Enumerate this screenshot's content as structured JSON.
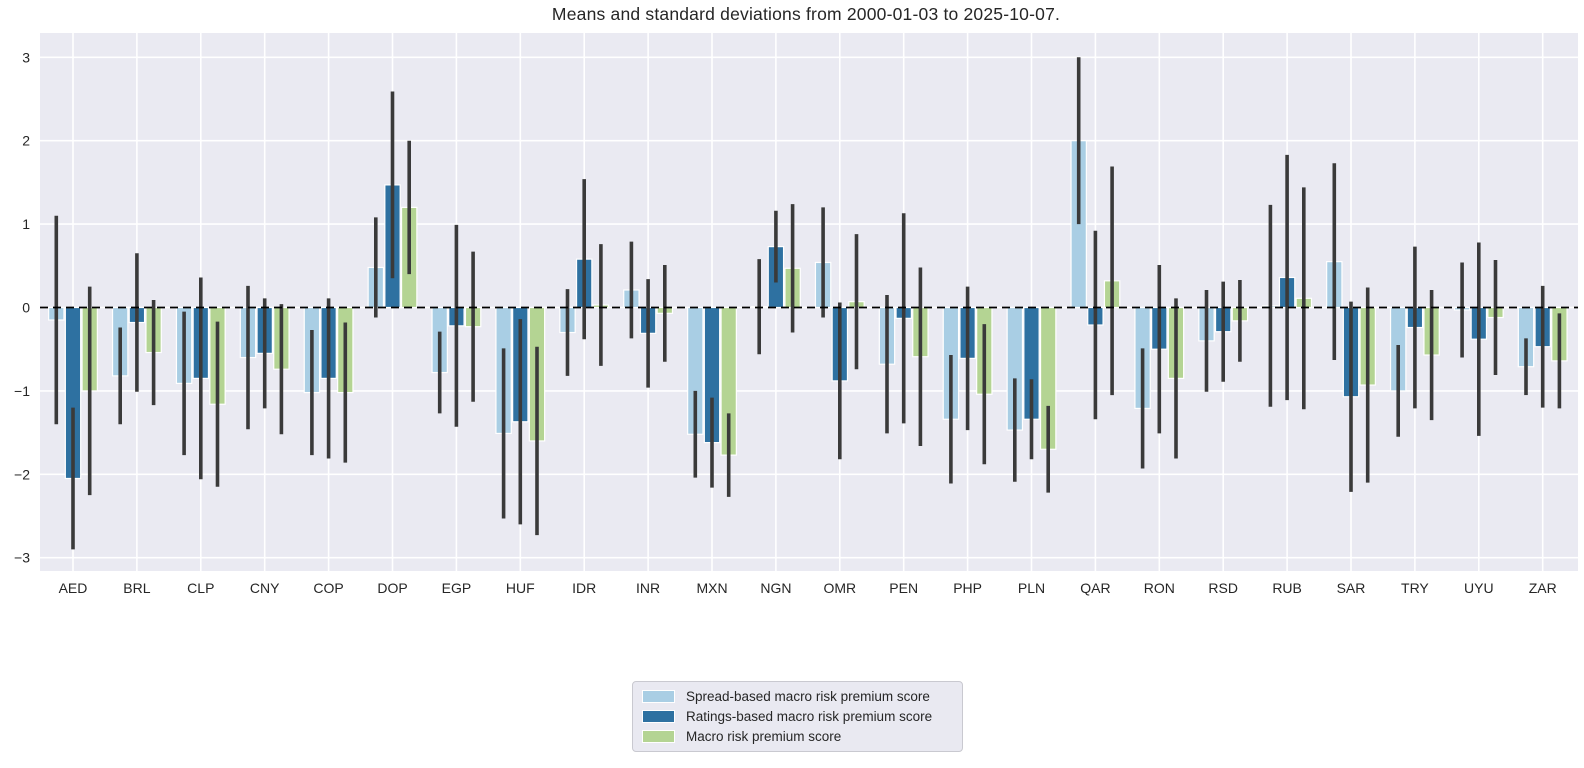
{
  "chart_data": {
    "type": "bar",
    "title": "Means and standard deviations from 2000-01-03 to 2025-10-07.",
    "categories": [
      "AED",
      "BRL",
      "CLP",
      "CNY",
      "COP",
      "DOP",
      "EGP",
      "HUF",
      "IDR",
      "INR",
      "MXN",
      "NGN",
      "OMR",
      "PEN",
      "PHP",
      "PLN",
      "QAR",
      "RON",
      "RSD",
      "RUB",
      "SAR",
      "TRY",
      "UYU",
      "ZAR"
    ],
    "series": [
      {
        "name": "Spread-based macro risk premium score",
        "color": "#a9cee4",
        "means": [
          -0.15,
          -0.82,
          -0.91,
          -0.6,
          -1.02,
          0.48,
          -0.78,
          -1.51,
          -0.3,
          0.21,
          -1.52,
          0.01,
          0.54,
          -0.68,
          -1.34,
          -1.47,
          2.0,
          -1.21,
          -0.4,
          0.02,
          0.55,
          -1.0,
          -0.03,
          -0.71
        ],
        "stds": [
          1.25,
          0.58,
          0.86,
          0.86,
          0.75,
          0.6,
          0.49,
          1.02,
          0.52,
          0.58,
          0.52,
          0.57,
          0.66,
          0.83,
          0.77,
          0.62,
          1.0,
          0.72,
          0.61,
          1.21,
          1.18,
          0.55,
          0.57,
          0.34
        ]
      },
      {
        "name": "Ratings-based macro risk premium score",
        "color": "#2e71a1",
        "means": [
          -2.05,
          -0.18,
          -0.85,
          -0.55,
          -0.85,
          1.47,
          -0.22,
          -1.37,
          0.58,
          -0.31,
          -1.62,
          0.73,
          -0.88,
          -0.13,
          -0.61,
          -1.34,
          -0.21,
          -0.5,
          -0.29,
          0.36,
          -1.07,
          -0.24,
          -0.38,
          -0.47
        ],
        "stds": [
          0.85,
          0.83,
          1.21,
          0.66,
          0.96,
          1.12,
          1.21,
          1.23,
          0.96,
          0.65,
          0.54,
          0.43,
          0.94,
          1.26,
          0.86,
          0.48,
          1.13,
          1.01,
          0.6,
          1.47,
          1.14,
          0.97,
          1.16,
          0.73
        ]
      },
      {
        "name": "Macro risk premium score",
        "color": "#b4d493",
        "means": [
          -1.0,
          -0.54,
          -1.16,
          -0.74,
          -1.02,
          1.2,
          -0.23,
          -1.6,
          0.03,
          -0.07,
          -1.77,
          0.47,
          0.07,
          -0.59,
          -1.04,
          -1.7,
          0.32,
          -0.85,
          -0.16,
          0.11,
          -0.93,
          -0.57,
          -0.12,
          -0.64
        ],
        "stds": [
          1.25,
          0.63,
          0.99,
          0.78,
          0.84,
          0.8,
          0.9,
          1.13,
          0.73,
          0.58,
          0.5,
          0.77,
          0.81,
          1.07,
          0.84,
          0.52,
          1.37,
          0.96,
          0.49,
          1.33,
          1.17,
          0.78,
          0.69,
          0.57
        ]
      }
    ],
    "error_bars": "mean ± 1 std",
    "yticks": [
      3,
      2,
      1,
      0,
      -1,
      -2,
      -3
    ],
    "ylim": [
      -3.2,
      3.3
    ],
    "grid": true,
    "zero_line": "dashed-black",
    "legend_position": "bottom-center",
    "style": {
      "plot_background": "#eaeaf2",
      "grid_color": "#ffffff",
      "error_bar_color": "#3a3a3a",
      "zero_line_color": "#000000",
      "text_color": "#262626",
      "bar_edge_color": "#ffffff",
      "legend_background": "#e9e9f1",
      "legend_border": "#c9c9d0"
    }
  }
}
